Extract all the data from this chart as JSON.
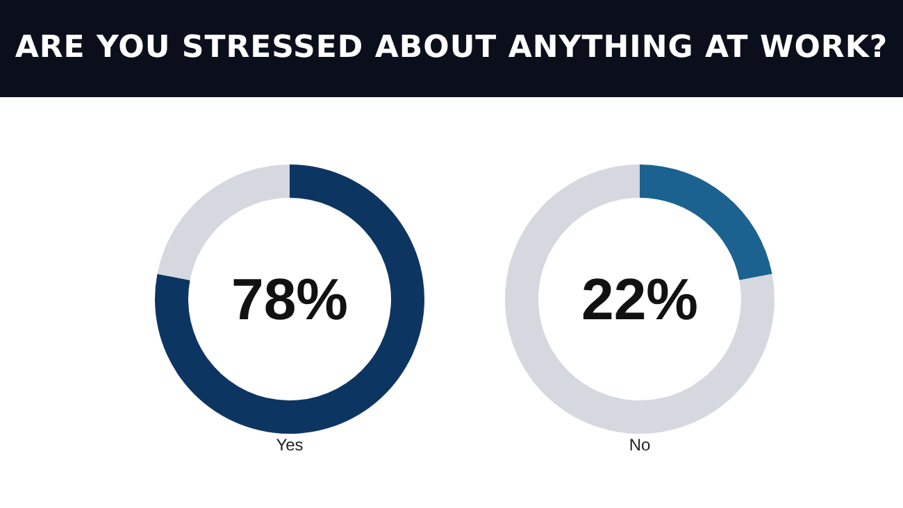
{
  "chart_data": [
    {
      "type": "donut",
      "title": "ARE YOU STRESSED ABOUT ANYTHING AT WORK?",
      "xlabel": "Yes",
      "categories": [
        null,
        null
      ],
      "values": [
        78,
        22
      ],
      "colors": [
        "#0d3561",
        "#d5d8df"
      ],
      "annotations": [
        "78%"
      ]
    },
    {
      "type": "donut",
      "xlabel": "No",
      "categories": [
        null,
        null
      ],
      "values": [
        22,
        78
      ],
      "colors": [
        "#1b6291",
        "#d5d8df"
      ],
      "annotations": [
        "22%"
      ]
    }
  ]
}
